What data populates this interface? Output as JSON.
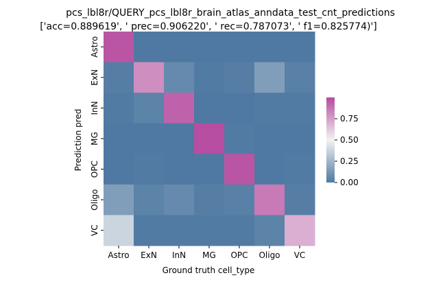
{
  "chart_data": {
    "type": "heatmap",
    "title_line1": "pcs_lbl8r/QUERY_pcs_lbl8r_brain_atlas_anndata_test_cnt_predictions",
    "title_line2": "['acc=0.889619', '  prec=0.906220', '  rec=0.787073', ' f1=0.825774)']",
    "xlabel": "Ground truth cell_type",
    "ylabel": "Prediction pred",
    "x_categories": [
      "Astro",
      "ExN",
      "InN",
      "MG",
      "OPC",
      "Oligo",
      "VC"
    ],
    "y_categories": [
      "Astro",
      "ExN",
      "InN",
      "MG",
      "OPC",
      "Oligo",
      "VC"
    ],
    "values": [
      [
        0.97,
        0.0,
        0.0,
        0.0,
        0.0,
        0.0,
        0.0
      ],
      [
        0.02,
        0.8,
        0.07,
        0.01,
        0.02,
        0.15,
        0.03
      ],
      [
        0.01,
        0.04,
        0.93,
        0.0,
        0.0,
        0.01,
        0.01
      ],
      [
        0.0,
        0.0,
        0.0,
        0.99,
        0.01,
        0.0,
        0.0
      ],
      [
        0.0,
        0.01,
        0.0,
        0.0,
        0.97,
        0.0,
        0.01
      ],
      [
        0.15,
        0.04,
        0.07,
        0.02,
        0.03,
        0.86,
        0.02
      ],
      [
        0.38,
        0.01,
        0.01,
        0.01,
        0.01,
        0.04,
        0.7
      ]
    ],
    "colorbar": {
      "min": 0.0,
      "max": 1.0,
      "ticks": [
        0.0,
        0.25,
        0.5,
        0.75
      ],
      "tick_labels": [
        "0.00",
        "0.25",
        "0.50",
        "0.75"
      ]
    },
    "colormap": {
      "low": "#4f79a2",
      "mid": "#f2f2f2",
      "high": "#b64b9f"
    },
    "grid": false,
    "legend": "colorbar-right"
  }
}
